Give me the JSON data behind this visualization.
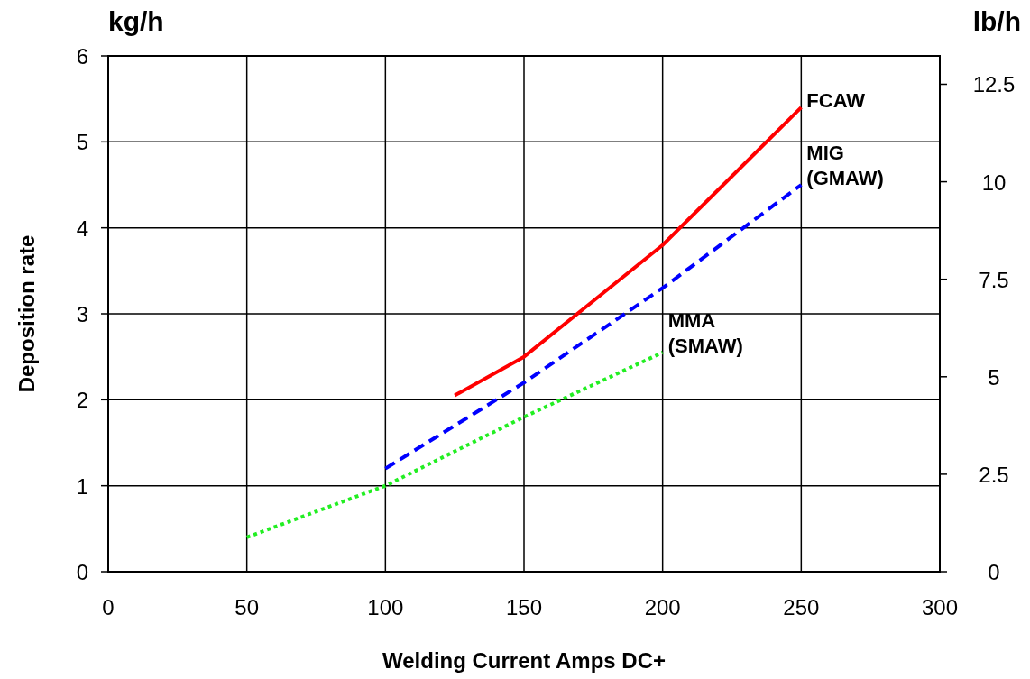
{
  "chart_data": {
    "type": "line",
    "xlabel": "Welding Current  Amps DC+",
    "ylabel": "Deposition rate",
    "y2label": "lb/h",
    "xlim": [
      0,
      300
    ],
    "xticks": [
      0,
      50,
      100,
      150,
      200,
      250,
      300
    ],
    "ylim": [
      0,
      6
    ],
    "yticks": [
      0,
      1,
      2,
      3,
      4,
      5,
      6
    ],
    "y2lim": [
      0,
      13.228
    ],
    "y2ticks": [
      0,
      2.5,
      5,
      7.5,
      10,
      12.5
    ],
    "grid": true,
    "series": [
      {
        "name": "FCAW",
        "color": "#ff0000",
        "line_style": "solid",
        "x": [
          125,
          150,
          175,
          200,
          225,
          250
        ],
        "values": [
          2.05,
          2.5,
          3.15,
          3.8,
          4.6,
          5.4
        ]
      },
      {
        "name": "MMA\n(SMAW)",
        "color": "#22ee22",
        "line_style": "dotted",
        "x": [
          50,
          100,
          150,
          200
        ],
        "values": [
          0.4,
          1.0,
          1.8,
          2.55
        ]
      },
      {
        "name": "MIG\n(GMAW)",
        "color": "#0000ff",
        "line_style": "dashed",
        "x": [
          100,
          125,
          150,
          175,
          200,
          225,
          250
        ],
        "values": [
          1.2,
          1.7,
          2.2,
          2.75,
          3.3,
          3.9,
          4.5
        ]
      }
    ],
    "annotations": [
      "kg/h"
    ]
  }
}
